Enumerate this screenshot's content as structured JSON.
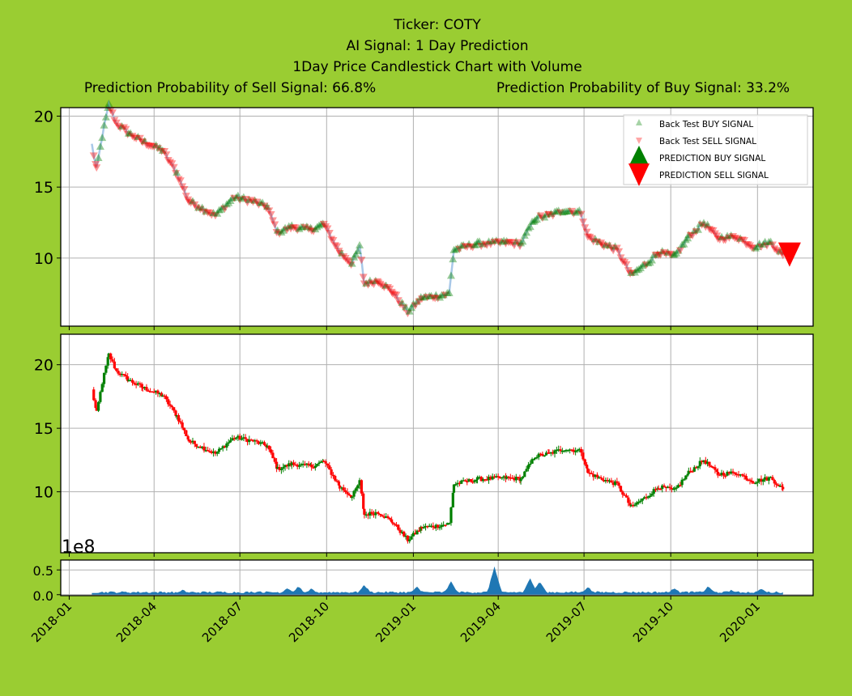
{
  "chart_data": {
    "type": "candlestick",
    "title_lines": [
      "Ticker: COTY",
      "AI Signal: 1 Day Prediction",
      "1Day Price Candlestick Chart with Volume"
    ],
    "prob_sell_label": "Prediction Probability of Sell Signal: 66.8%",
    "prob_buy_label": "Prediction Probability of Buy Signal: 33.2%",
    "x_ticks": [
      "2018-01",
      "2018-04",
      "2018-07",
      "2018-10",
      "2019-01",
      "2019-04",
      "2019-07",
      "2019-10",
      "2020-01"
    ],
    "x_range": [
      "2017-12-23",
      "2020-02-29"
    ],
    "price_keypoints": [
      [
        "2018-01-25",
        18.0
      ],
      [
        "2018-01-30",
        16.2
      ],
      [
        "2018-02-05",
        18.6
      ],
      [
        "2018-02-12",
        20.8
      ],
      [
        "2018-02-20",
        19.5
      ],
      [
        "2018-03-05",
        18.8
      ],
      [
        "2018-03-20",
        18.2
      ],
      [
        "2018-04-10",
        17.6
      ],
      [
        "2018-04-25",
        16.0
      ],
      [
        "2018-05-08",
        14.0
      ],
      [
        "2018-05-22",
        13.5
      ],
      [
        "2018-06-05",
        13.0
      ],
      [
        "2018-06-25",
        14.3
      ],
      [
        "2018-07-15",
        14.0
      ],
      [
        "2018-07-30",
        13.6
      ],
      [
        "2018-08-10",
        11.8
      ],
      [
        "2018-08-25",
        12.2
      ],
      [
        "2018-09-15",
        12.0
      ],
      [
        "2018-09-28",
        12.4
      ],
      [
        "2018-10-15",
        10.4
      ],
      [
        "2018-10-28",
        9.6
      ],
      [
        "2018-11-05",
        10.8
      ],
      [
        "2018-11-10",
        8.2
      ],
      [
        "2018-11-25",
        8.4
      ],
      [
        "2018-12-10",
        7.6
      ],
      [
        "2018-12-26",
        6.2
      ],
      [
        "2019-01-10",
        7.2
      ],
      [
        "2019-01-25",
        7.3
      ],
      [
        "2019-02-08",
        7.5
      ],
      [
        "2019-02-13",
        10.6
      ],
      [
        "2019-03-10",
        11.0
      ],
      [
        "2019-04-10",
        11.1
      ],
      [
        "2019-04-25",
        11.0
      ],
      [
        "2019-05-10",
        12.8
      ],
      [
        "2019-05-25",
        13.0
      ],
      [
        "2019-06-10",
        13.4
      ],
      [
        "2019-06-28",
        13.2
      ],
      [
        "2019-07-05",
        11.5
      ],
      [
        "2019-07-20",
        11.0
      ],
      [
        "2019-08-05",
        10.6
      ],
      [
        "2019-08-20",
        8.8
      ],
      [
        "2019-09-05",
        9.6
      ],
      [
        "2019-09-18",
        10.4
      ],
      [
        "2019-10-05",
        10.1
      ],
      [
        "2019-10-20",
        11.5
      ],
      [
        "2019-11-05",
        12.5
      ],
      [
        "2019-11-20",
        11.4
      ],
      [
        "2019-12-10",
        11.5
      ],
      [
        "2019-12-28",
        10.8
      ],
      [
        "2020-01-15",
        11.1
      ],
      [
        "2020-01-28",
        10.2
      ]
    ],
    "price_ylim": [
      5.2,
      20.6
    ],
    "price_yticks": [
      10,
      15,
      20
    ],
    "candle_ylim": [
      5.2,
      22.4
    ],
    "candle_yticks": [
      10,
      15,
      20
    ],
    "volume_ylim": [
      -0.02,
      0.7
    ],
    "volume_yticks": [
      "0.0",
      "0.5"
    ],
    "volume_scale_label": "1e8",
    "volume_spikes": [
      [
        "2018-05-01",
        0.08
      ],
      [
        "2018-07-20",
        0.06
      ],
      [
        "2018-08-20",
        0.12
      ],
      [
        "2018-09-01",
        0.15
      ],
      [
        "2018-09-15",
        0.1
      ],
      [
        "2018-11-10",
        0.18
      ],
      [
        "2019-01-05",
        0.14
      ],
      [
        "2019-02-10",
        0.24
      ],
      [
        "2019-03-28",
        0.55
      ],
      [
        "2019-05-05",
        0.32
      ],
      [
        "2019-05-15",
        0.26
      ],
      [
        "2019-07-05",
        0.14
      ],
      [
        "2019-10-05",
        0.12
      ],
      [
        "2019-11-10",
        0.15
      ],
      [
        "2019-12-05",
        0.08
      ],
      [
        "2020-01-05",
        0.1
      ]
    ],
    "prediction": {
      "date": "2020-02-04",
      "price": 10.3,
      "signal": "SELL"
    },
    "legend": {
      "placement": "top-right",
      "items": [
        "Back Test BUY SIGNAL",
        "Back Test SELL SIGNAL",
        "PREDICTION BUY SIGNAL",
        "PREDICTION SELL SIGNAL"
      ]
    },
    "colors": {
      "background": "#9acd32",
      "buy": "#008000",
      "sell": "#ff0000",
      "line": "#a8c8e8",
      "volume": "#1f77b4",
      "grid": "#b0b0b0"
    }
  }
}
